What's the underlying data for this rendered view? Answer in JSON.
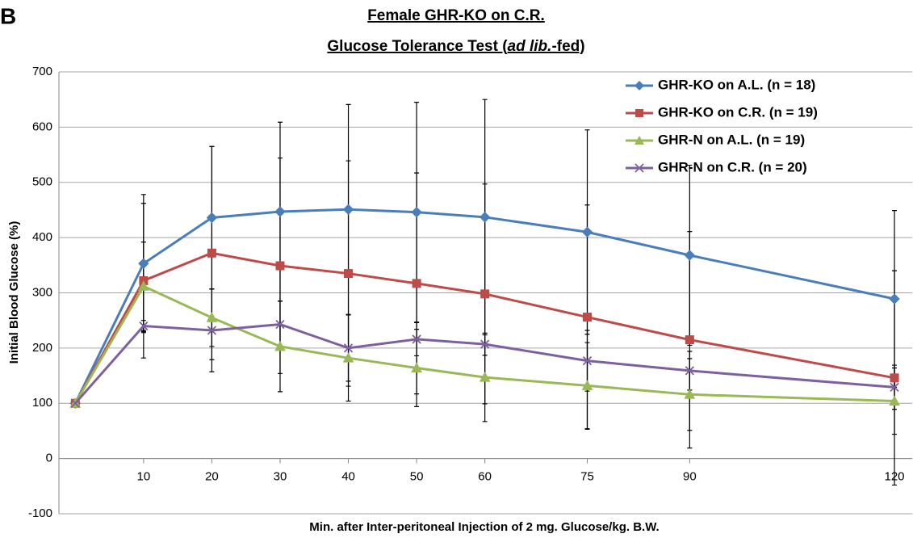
{
  "panel_label": "B",
  "chart_data": {
    "type": "line",
    "title": [
      "Female GHR-KO on C.R.",
      {
        "parts": [
          "Glucose Tolerance Test (",
          "ad lib.",
          "-fed)"
        ]
      }
    ],
    "x_label": "Min. after Inter-peritoneal Injection of 2 mg. Glucose/kg. B.W.",
    "y_label": "Initial Blood Glucose (%)",
    "x": [
      0,
      10,
      20,
      30,
      40,
      50,
      60,
      75,
      90,
      120
    ],
    "xlim": [
      -2.4,
      122.6
    ],
    "xticks": [
      10,
      20,
      30,
      40,
      50,
      60,
      75,
      90,
      120
    ],
    "ylim": [
      -100,
      700
    ],
    "yticks": [
      -100,
      0,
      100,
      200,
      300,
      400,
      500,
      600,
      700
    ],
    "grid": true,
    "legend": "top-right",
    "series": [
      {
        "name": "GHR-KO on A.L. (n = 18)",
        "color": "#4a7ebb",
        "marker": "diamond",
        "values": [
          100,
          353,
          436,
          447,
          451,
          446,
          437,
          410,
          368,
          289
        ],
        "errors": [
          0,
          125,
          129,
          162,
          190,
          199,
          213,
          185,
          163,
          160
        ]
      },
      {
        "name": "GHR-KO on C.R. (n = 19)",
        "color": "#be4b48",
        "marker": "square",
        "values": [
          100,
          322,
          372,
          349,
          335,
          317,
          298,
          256,
          215,
          146
        ],
        "errors": [
          0,
          140,
          193,
          195,
          204,
          200,
          199,
          203,
          196,
          194
        ]
      },
      {
        "name": "GHR-N on A.L. (n = 19)",
        "color": "#98b954",
        "marker": "triangle",
        "values": [
          100,
          312,
          255,
          203,
          182,
          164,
          147,
          132,
          116,
          104
        ],
        "errors": [
          0,
          80,
          52,
          82,
          78,
          70,
          80,
          78,
          65,
          60
        ]
      },
      {
        "name": "GHR-N on C.R. (n = 20)",
        "color": "#7d60a0",
        "marker": "x",
        "values": [
          100,
          240,
          232,
          243,
          200,
          216,
          207,
          177,
          159,
          129
        ],
        "errors": [
          0,
          10,
          75,
          42,
          60,
          30,
          20,
          55,
          35,
          40
        ]
      }
    ]
  }
}
